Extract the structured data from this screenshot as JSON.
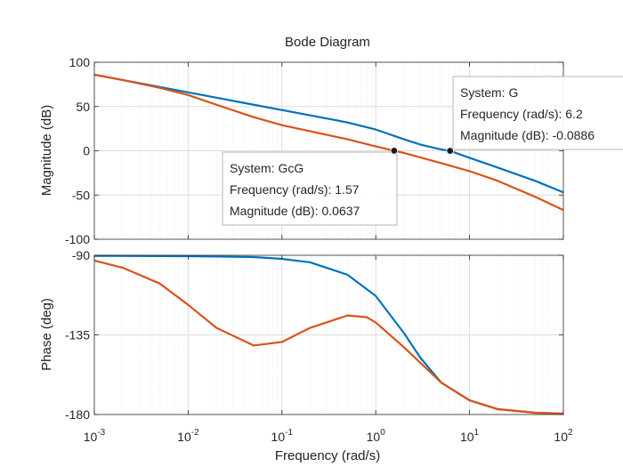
{
  "chart_data": [
    {
      "type": "line",
      "title": "Bode Diagram",
      "xlabel": "",
      "ylabel": "Magnitude (dB)",
      "xscale": "log",
      "xlim": [
        0.001,
        100
      ],
      "ylim": [
        -100,
        100
      ],
      "yticks": [
        100,
        50,
        0,
        -50,
        -100
      ],
      "yticklabels": [
        "100",
        "50",
        "0",
        "-50",
        "-100"
      ],
      "grid": true,
      "series": [
        {
          "name": "G",
          "color": "#0072BD",
          "x": [
            0.001,
            0.002,
            0.005,
            0.01,
            0.02,
            0.05,
            0.1,
            0.2,
            0.5,
            1,
            2,
            3,
            5,
            6.2,
            10,
            20,
            50,
            100
          ],
          "y": [
            86,
            80,
            72,
            66,
            60,
            52,
            46,
            40,
            32,
            24,
            13,
            7,
            1.5,
            -0.0886,
            -8,
            -19,
            -34,
            -47
          ]
        },
        {
          "name": "GcG",
          "color": "#D95319",
          "x": [
            0.001,
            0.002,
            0.005,
            0.01,
            0.02,
            0.05,
            0.1,
            0.2,
            0.5,
            1,
            1.57,
            2,
            5,
            10,
            20,
            50,
            100
          ],
          "y": [
            86,
            80,
            71,
            63,
            52,
            38,
            29,
            22,
            13,
            5,
            0.0637,
            -2.5,
            -14,
            -23,
            -34,
            -52,
            -67
          ]
        }
      ],
      "annotations": [
        {
          "system_label": "System: G",
          "freq_label": "Frequency (rad/s): 6.2",
          "mag_label": "Magnitude (dB): -0.0886",
          "x": 6.2,
          "y": -0.0886
        },
        {
          "system_label": "System: GcG",
          "freq_label": "Frequency (rad/s): 1.57",
          "mag_label": "Magnitude (dB): 0.0637",
          "x": 1.57,
          "y": 0.0637
        }
      ]
    },
    {
      "type": "line",
      "xlabel": "Frequency  (rad/s)",
      "ylabel": "Phase (deg)",
      "xscale": "log",
      "xlim": [
        0.001,
        100
      ],
      "ylim": [
        -180,
        -90
      ],
      "yticks": [
        -90,
        -135,
        -180
      ],
      "yticklabels": [
        "-90",
        "-135",
        "-180"
      ],
      "xticks": [
        0.001,
        0.01,
        0.1,
        1,
        10,
        100
      ],
      "xtick_base": "10",
      "xtick_exponents": [
        "-3",
        "-2",
        "-1",
        "0",
        "1",
        "2"
      ],
      "grid": true,
      "series": [
        {
          "name": "G",
          "color": "#0072BD",
          "x": [
            0.001,
            0.01,
            0.05,
            0.1,
            0.2,
            0.5,
            1,
            2,
            3,
            5,
            10,
            20,
            50,
            100
          ],
          "y": [
            -90.3,
            -90.5,
            -91,
            -92,
            -94,
            -101,
            -113,
            -134,
            -148,
            -162,
            -172,
            -177,
            -179,
            -179.5
          ]
        },
        {
          "name": "GcG",
          "color": "#D95319",
          "x": [
            0.001,
            0.002,
            0.005,
            0.01,
            0.02,
            0.05,
            0.1,
            0.2,
            0.5,
            0.8,
            1,
            2,
            5,
            10,
            20,
            50,
            100
          ],
          "y": [
            -93,
            -97,
            -106,
            -118,
            -131,
            -141,
            -139,
            -131,
            -124,
            -125,
            -128,
            -142,
            -162,
            -172,
            -177,
            -179,
            -179.5
          ]
        }
      ]
    }
  ]
}
